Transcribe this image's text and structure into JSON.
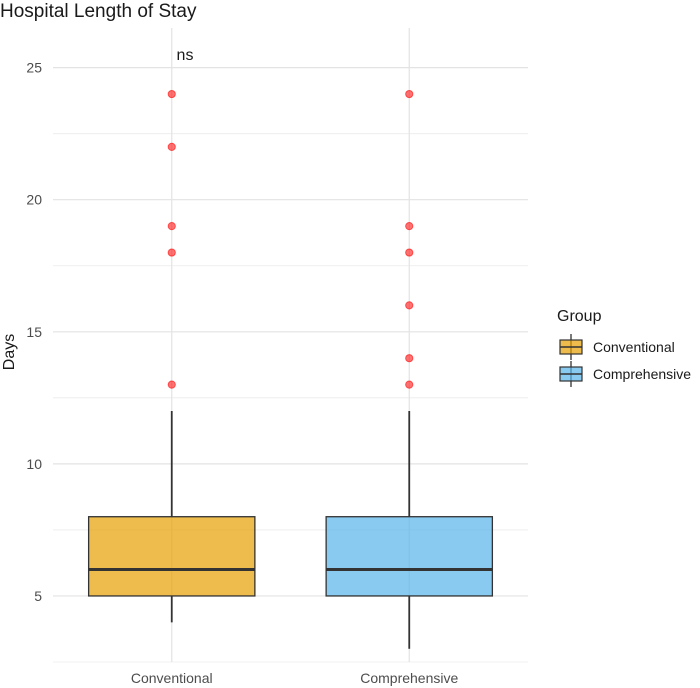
{
  "chart_data": {
    "type": "box",
    "title": "Hospital Length of Stay",
    "xlabel": "",
    "ylabel": "Days",
    "ylim": [
      2.5,
      26.5
    ],
    "yticks": [
      5,
      10,
      15,
      20,
      25
    ],
    "grid": true,
    "legend": {
      "title": "Group",
      "placement": "right",
      "entries": [
        "Conventional",
        "Comprehensive"
      ]
    },
    "annotation": "ns",
    "categories": [
      "Conventional",
      "Comprehensive"
    ],
    "series": [
      {
        "name": "Conventional",
        "color": "#E69F00",
        "whisker_low": 4,
        "q1": 5,
        "median": 6,
        "q3": 8,
        "whisker_high": 12,
        "outliers": [
          13,
          18,
          19,
          22,
          24
        ]
      },
      {
        "name": "Comprehensive",
        "color": "#56B4E9",
        "whisker_low": 3,
        "q1": 5,
        "median": 6,
        "q3": 8,
        "whisker_high": 12,
        "outliers": [
          13,
          14,
          16,
          18,
          19,
          24
        ]
      }
    ],
    "outlier_color": "#FF0000"
  }
}
